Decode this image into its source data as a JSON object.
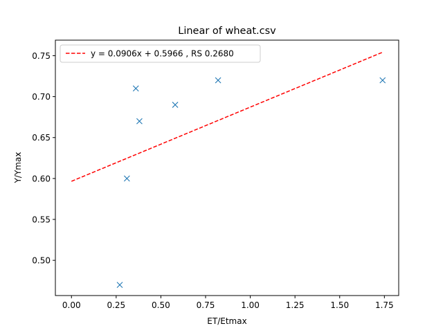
{
  "chart_data": {
    "type": "scatter",
    "title": "Linear of wheat.csv",
    "xlabel": "ET/Etmax",
    "ylabel": "Y/Ymax",
    "xlim": [
      -0.09,
      1.83
    ],
    "ylim": [
      0.457,
      0.769
    ],
    "xticks": [
      "0.00",
      "0.25",
      "0.50",
      "0.75",
      "1.00",
      "1.25",
      "1.50",
      "1.75"
    ],
    "xtick_values": [
      0,
      0.25,
      0.5,
      0.75,
      1.0,
      1.25,
      1.5,
      1.75
    ],
    "yticks": [
      "0.50",
      "0.55",
      "0.60",
      "0.65",
      "0.70",
      "0.75"
    ],
    "ytick_values": [
      0.5,
      0.55,
      0.6,
      0.65,
      0.7,
      0.75
    ],
    "grid": false,
    "legend": {
      "placement": "top-left",
      "label": "y = 0.0906x + 0.5966 , RS 0.2680"
    },
    "points": {
      "marker": "x",
      "color": "#1f77b4",
      "x": [
        0.27,
        0.31,
        0.36,
        0.38,
        0.58,
        0.82,
        1.74
      ],
      "y": [
        0.47,
        0.6,
        0.71,
        0.67,
        0.69,
        0.72,
        0.72
      ]
    },
    "fit_line": {
      "slope": 0.0906,
      "intercept": 0.5966,
      "x_range": [
        0,
        1.74
      ],
      "color": "#ff0000",
      "style": "dashed"
    }
  }
}
